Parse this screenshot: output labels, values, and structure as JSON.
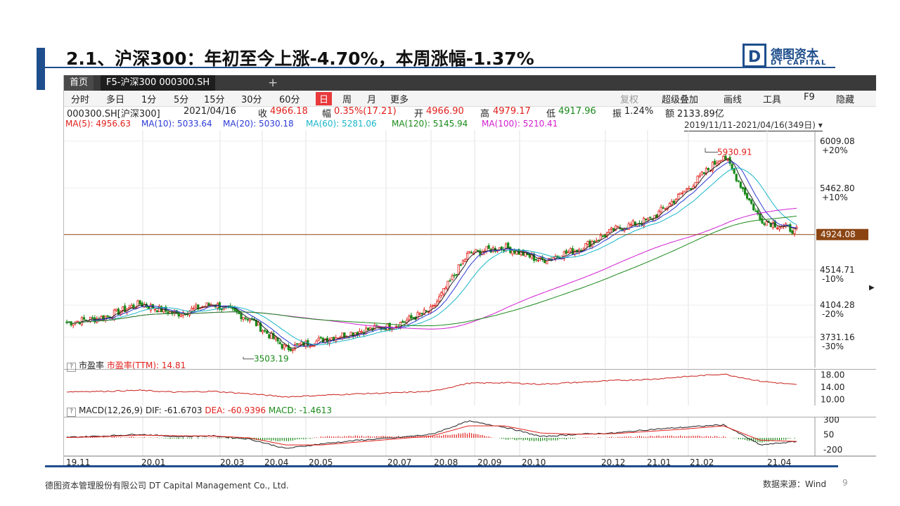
{
  "slide": {
    "title": "2.1、沪深300：年初至今上涨-4.70%，本周涨幅-1.37%",
    "logo_cn": "德图资本",
    "logo_en": "DT CAPITAL",
    "logo_letter": "D",
    "footer_left": "德图资本管理股份有限公司  DT Capital Management  Co., Ltd.",
    "footer_source": "数据来源：Wind",
    "page_number": "9"
  },
  "app": {
    "tabs": [
      "首页",
      "F5-沪深300 000300.SH",
      "+"
    ],
    "toolbar": [
      "分时",
      "多日",
      "1分",
      "5分",
      "15分",
      "30分",
      "60分",
      "日",
      "周",
      "月",
      "更多"
    ],
    "toolbar_right": [
      "复权",
      "超级叠加",
      "画线",
      "工具",
      "F9",
      "隐藏"
    ],
    "info": {
      "code": "000300.SH[沪深300]",
      "date": "2021/04/16",
      "close_label": "收",
      "close": "4966.18",
      "change_label": "幅",
      "change": "0.35%(17.21)",
      "open_label": "开",
      "open": "4966.90",
      "high_label": "高",
      "high": "4979.17",
      "low_label": "低",
      "low": "4917.96",
      "amp_label": "振",
      "amp": "1.24%",
      "amount_label": "额",
      "amount": "2133.89亿"
    },
    "ma": {
      "ma5": "MA(5): 4956.63",
      "ma10": "MA(10): 5033.64",
      "ma20": "MA(20): 5030.18",
      "ma60": "MA(60): 5281.06",
      "ma120": "MA(120): 5145.94",
      "ma100": "MA(100): 5210.41"
    },
    "range": "2019/11/11-2021/04/16(349日)",
    "pe_title": "市盈率",
    "pe_label": "市盈率(TTM): 14.81",
    "macd_title": "MACD(12,26,9)",
    "macd_dif": "DIF: -61.6703",
    "macd_dea": "DEA: -60.9396",
    "macd_val": "MACD: -1.4613",
    "help": "?"
  },
  "colors": {
    "up": "#e0201b",
    "down": "#1a8a1a",
    "ma5": "#222222",
    "ma10": "#2b3bd6",
    "ma20": "#19b6c8",
    "ma60": "#d020d0",
    "ma120": "#1a8a1a",
    "pe": "#c8201b",
    "accent": "#1e4e8c",
    "price_line": "#8b4513"
  },
  "chart_data": [
    {
      "type": "candlestick",
      "xlabel": "",
      "ylabel": "",
      "x_ticks": [
        "19.11",
        "20.01",
        "20.03",
        "20.04",
        "20.05",
        "20.07",
        "20.08",
        "20.09",
        "20.10",
        "20.12",
        "21.01",
        "21.02",
        "21.04"
      ],
      "y_ticks": [
        {
          "value": 6009.08,
          "label": "6009.08",
          "pct": "+20%"
        },
        {
          "value": 5462.8,
          "label": "5462.80",
          "pct": "+10%"
        },
        {
          "value": 4514.71,
          "label": "4514.71",
          "pct": "-10%"
        },
        {
          "value": 4104.28,
          "label": "4104.28",
          "pct": "-20%"
        },
        {
          "value": 3731.16,
          "label": "3731.16",
          "pct": "-30%"
        }
      ],
      "ylim": [
        3460,
        6090
      ],
      "current_price": "4924.08",
      "max_annotation": {
        "value": "5930.91",
        "date": "2021-02"
      },
      "min_annotation": {
        "value": "3503.19",
        "date": "2020-03"
      },
      "close_path": [
        [
          "2019-11",
          3900
        ],
        [
          "2019-12",
          3960
        ],
        [
          "2020-01",
          4120
        ],
        [
          "2020-01-late",
          4000
        ],
        [
          "2020-02",
          4120
        ],
        [
          "2020-02-late",
          3950
        ],
        [
          "2020-03",
          3600
        ],
        [
          "2020-03-late",
          3700
        ],
        [
          "2020-04",
          3800
        ],
        [
          "2020-05",
          3870
        ],
        [
          "2020-06",
          4050
        ],
        [
          "2020-07",
          4700
        ],
        [
          "2020-08",
          4780
        ],
        [
          "2020-09",
          4620
        ],
        [
          "2020-10",
          4750
        ],
        [
          "2020-11",
          4980
        ],
        [
          "2020-12",
          5100
        ],
        [
          "2021-01",
          5450
        ],
        [
          "2021-02",
          5850
        ],
        [
          "2021-03",
          5100
        ],
        [
          "2021-04",
          4966
        ]
      ]
    },
    {
      "type": "line",
      "name": "市盈率(TTM)",
      "y_ticks": [
        "18.00",
        "14.00",
        "10.00"
      ],
      "ylim": [
        9,
        19.5
      ],
      "values": [
        12.6,
        12.7,
        13.0,
        12.4,
        12.7,
        11.9,
        10.9,
        11.4,
        11.9,
        12.2,
        12.7,
        15.3,
        15.5,
        15.0,
        15.6,
        16.2,
        16.6,
        17.5,
        18.3,
        16.0,
        14.8
      ]
    },
    {
      "type": "bar",
      "name": "MACD(12,26,9)",
      "y_ticks": [
        "300",
        "50",
        "-200"
      ],
      "ylim": [
        -260,
        330
      ],
      "dif": [
        10,
        30,
        60,
        20,
        30,
        -20,
        -180,
        -100,
        -40,
        0,
        60,
        280,
        180,
        20,
        60,
        80,
        140,
        180,
        220,
        -120,
        -62
      ],
      "dea": [
        5,
        20,
        45,
        35,
        30,
        0,
        -120,
        -120,
        -70,
        -20,
        30,
        200,
        200,
        80,
        60,
        70,
        110,
        150,
        200,
        -40,
        -61
      ]
    }
  ]
}
